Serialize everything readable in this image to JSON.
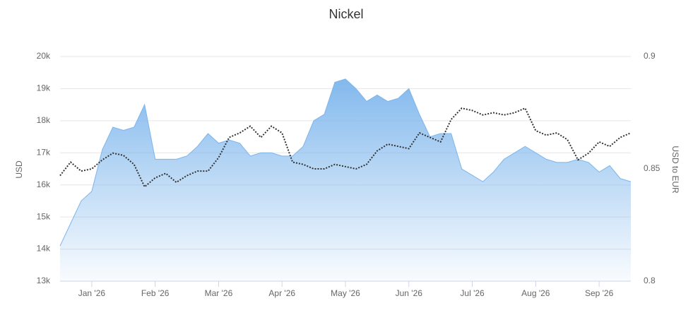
{
  "chart_data": {
    "type": "area",
    "title": "Nickel",
    "y_label": "USD",
    "y2_label": "USD to EUR",
    "grid": true,
    "categories": [
      null,
      null,
      null,
      "Jan '26",
      null,
      null,
      null,
      null,
      null,
      "Feb '26",
      null,
      null,
      null,
      null,
      null,
      "Mar '26",
      null,
      null,
      null,
      null,
      null,
      "Apr '26",
      null,
      null,
      null,
      null,
      null,
      "May '26",
      null,
      null,
      null,
      null,
      null,
      "Jun '26",
      null,
      null,
      null,
      null,
      null,
      "Jul '26",
      null,
      null,
      null,
      null,
      null,
      "Aug '26",
      null,
      null,
      null,
      null,
      null,
      "Sep '26",
      null,
      null,
      null
    ],
    "ylim": [
      13000,
      20000
    ],
    "yticks": [
      {
        "value": 13000,
        "label": "13k"
      },
      {
        "value": 14000,
        "label": "14k"
      },
      {
        "value": 15000,
        "label": "15k"
      },
      {
        "value": 16000,
        "label": "16k"
      },
      {
        "value": 17000,
        "label": "17k"
      },
      {
        "value": 18000,
        "label": "18k"
      },
      {
        "value": 19000,
        "label": "19k"
      },
      {
        "value": 20000,
        "label": "20k"
      }
    ],
    "y2lim": [
      0.8,
      0.9
    ],
    "y2ticks": [
      0.8,
      0.85,
      0.9
    ],
    "series": [
      {
        "type": "area",
        "color": "#7cb5ec",
        "values": [
          14100,
          14800,
          15500,
          15800,
          17100,
          17800,
          17700,
          17800,
          18500,
          16800,
          16800,
          16800,
          16900,
          17200,
          17600,
          17300,
          17400,
          17300,
          16900,
          17000,
          17000,
          16900,
          16900,
          17200,
          18000,
          18200,
          19200,
          19300,
          19000,
          18600,
          18800,
          18600,
          18700,
          19000,
          18200,
          17500,
          17600,
          17600,
          16500,
          16300,
          16100,
          16400,
          16800,
          17000,
          17200,
          17000,
          16800,
          16700,
          16700,
          16800,
          16700,
          16400,
          16600,
          16200,
          16100
        ]
      },
      {
        "type": "line",
        "axis": "y2",
        "color": "#333333",
        "values": [
          0.847,
          0.853,
          0.849,
          0.85,
          0.854,
          0.857,
          0.856,
          0.852,
          0.842,
          0.846,
          0.848,
          0.844,
          0.847,
          0.849,
          0.849,
          0.855,
          0.864,
          0.866,
          0.869,
          0.864,
          0.869,
          0.866,
          0.853,
          0.852,
          0.85,
          0.85,
          0.852,
          0.851,
          0.85,
          0.852,
          0.858,
          0.861,
          0.86,
          0.859,
          0.866,
          0.864,
          0.862,
          0.872,
          0.877,
          0.876,
          0.874,
          0.875,
          0.874,
          0.875,
          0.877,
          0.867,
          0.865,
          0.866,
          0.863,
          0.854,
          0.857,
          0.862,
          0.86,
          0.864,
          0.866
        ]
      }
    ]
  }
}
